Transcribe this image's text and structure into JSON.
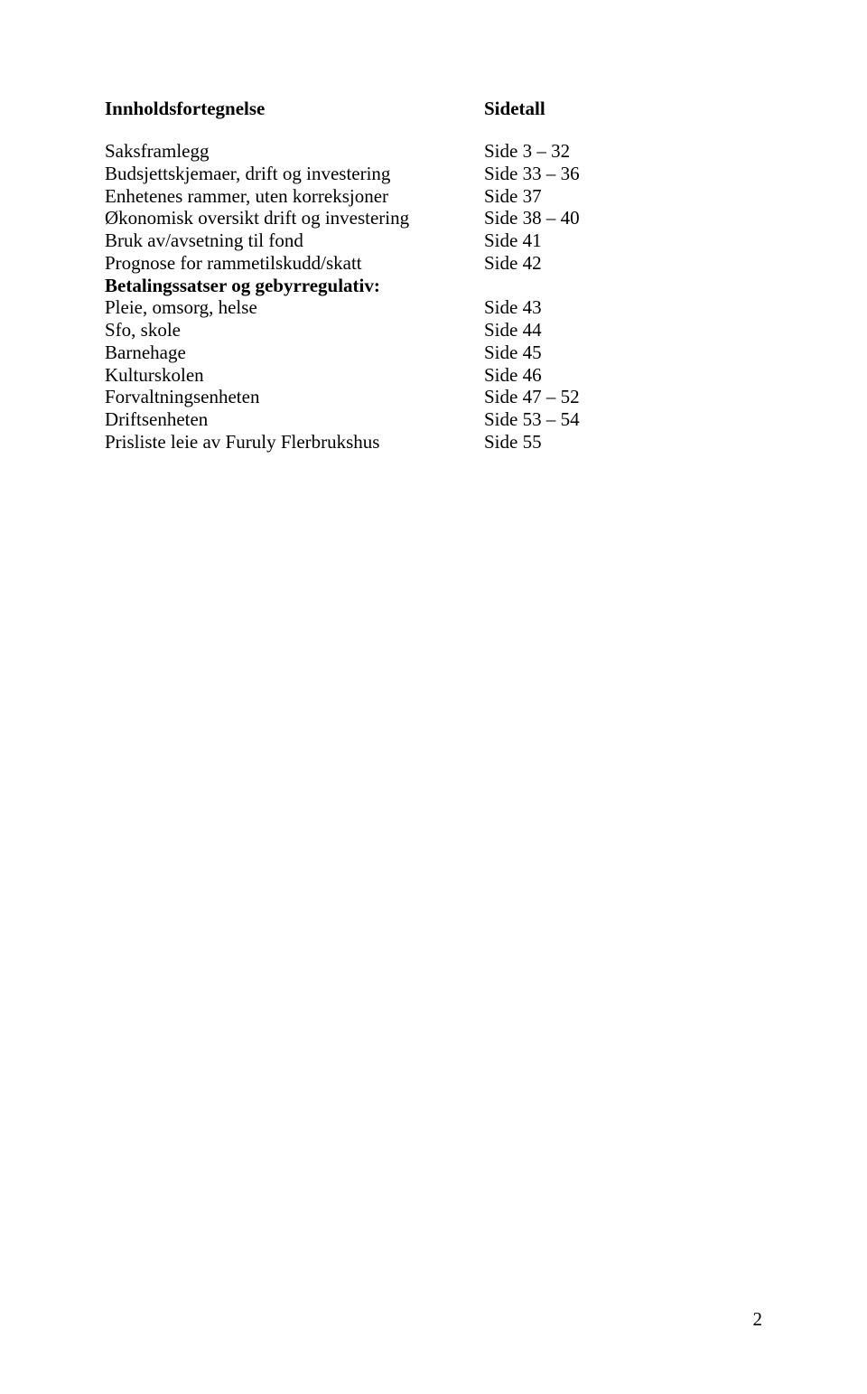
{
  "header": {
    "left": "Innholdsfortegnelse",
    "right": "Sidetall"
  },
  "rows": [
    {
      "label": "Saksframlegg",
      "value": "Side 3 – 32",
      "bold": false
    },
    {
      "label": "Budsjettskjemaer, drift og investering",
      "value": "Side 33 – 36",
      "bold": false
    },
    {
      "label": "Enhetenes rammer, uten korreksjoner",
      "value": "Side 37",
      "bold": false
    },
    {
      "label": "Økonomisk oversikt drift og investering",
      "value": "Side 38 – 40",
      "bold": false
    },
    {
      "label": "Bruk av/avsetning til fond",
      "value": "Side 41",
      "bold": false
    },
    {
      "label": "Prognose for rammetilskudd/skatt",
      "value": "Side 42",
      "bold": false
    },
    {
      "label": "Betalingssatser og gebyrregulativ:",
      "value": "",
      "bold": true
    },
    {
      "label": "Pleie, omsorg, helse",
      "value": "Side 43",
      "bold": false
    },
    {
      "label": "Sfo, skole",
      "value": "Side 44",
      "bold": false
    },
    {
      "label": "Barnehage",
      "value": "Side 45",
      "bold": false
    },
    {
      "label": "Kulturskolen",
      "value": "Side 46",
      "bold": false
    },
    {
      "label": "Forvaltningsenheten",
      "value": "Side 47 – 52",
      "bold": false
    },
    {
      "label": "Driftsenheten",
      "value": "Side 53 – 54",
      "bold": false
    },
    {
      "label": "Prisliste leie av Furuly Flerbrukshus",
      "value": "Side 55",
      "bold": false
    }
  ],
  "pageNumber": "2"
}
